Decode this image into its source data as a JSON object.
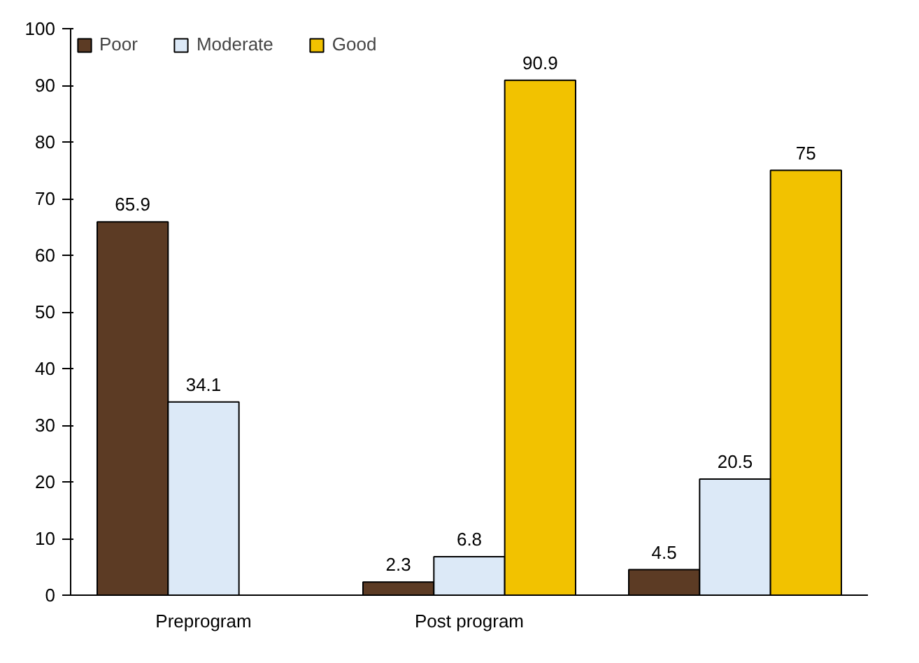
{
  "chart_data": {
    "type": "bar",
    "categories": [
      "Preprogram",
      "Post program",
      null
    ],
    "series": [
      {
        "name": "Poor",
        "color": "#5c3b24",
        "values": [
          65.9,
          2.3,
          4.5
        ]
      },
      {
        "name": "Moderate",
        "color": "#dce9f7",
        "values": [
          34.1,
          6.8,
          20.5
        ]
      },
      {
        "name": "Good",
        "color": "#f2c200",
        "values": [
          null,
          90.9,
          75
        ]
      }
    ],
    "ylim": [
      0,
      100
    ],
    "yticks": [
      0,
      10,
      20,
      30,
      40,
      50,
      60,
      70,
      80,
      90,
      100
    ],
    "grid": false,
    "legend": "top left",
    "data_labels": true
  }
}
